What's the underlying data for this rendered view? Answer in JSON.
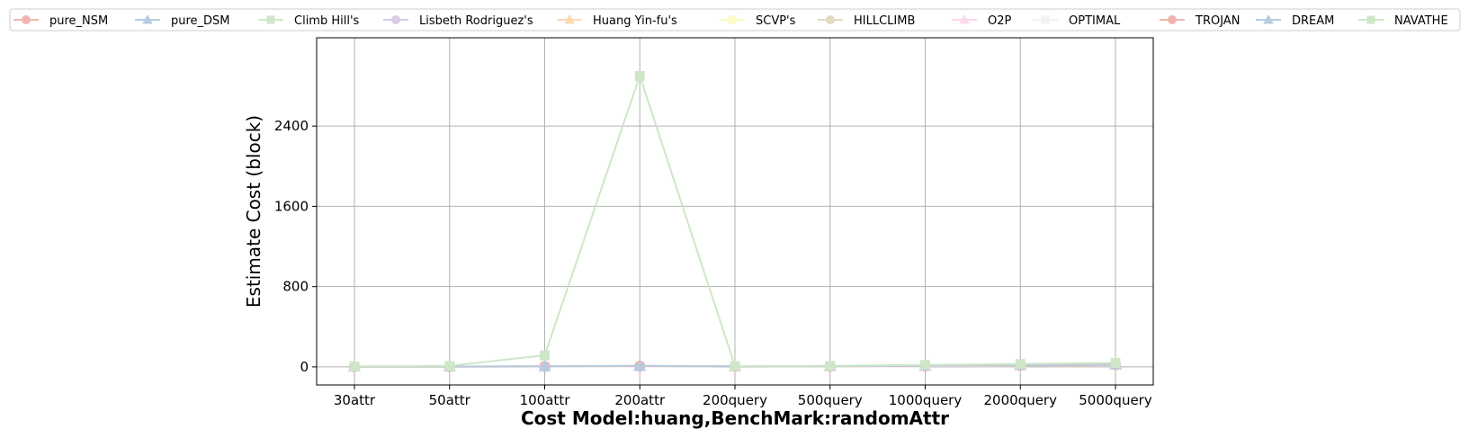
{
  "chart_data": {
    "type": "line",
    "title": "",
    "xlabel": "Cost Model:huang,BenchMark:randomAttr",
    "ylabel": "Estimate Cost (block)",
    "categories": [
      "30attr",
      "50attr",
      "100attr",
      "200attr",
      "200query",
      "500query",
      "1000query",
      "2000query",
      "5000query"
    ],
    "ylim": [
      -180,
      3280
    ],
    "yticks": [
      0,
      800,
      1600,
      2400
    ],
    "grid": true,
    "legend_position": "top",
    "series": [
      {
        "name": "pure_NSM",
        "marker": "circle",
        "color": "#f1b5b0",
        "values": [
          2,
          3,
          5,
          8,
          4,
          6,
          9,
          15,
          20
        ]
      },
      {
        "name": "pure_DSM",
        "marker": "triangle",
        "color": "#b6cbe0",
        "values": [
          3,
          4,
          6,
          10,
          5,
          7,
          11,
          18,
          25
        ]
      },
      {
        "name": "Climb Hill's",
        "marker": "square",
        "color": "#cfe6c9",
        "values": [
          2,
          3,
          5,
          9,
          4,
          6,
          10,
          16,
          22
        ]
      },
      {
        "name": "Lisbeth Rodriguez's",
        "marker": "circle",
        "color": "#d8cbe3",
        "values": [
          2,
          3,
          4,
          7,
          4,
          6,
          9,
          14,
          20
        ]
      },
      {
        "name": "Huang Yin-fu's",
        "marker": "triangle",
        "color": "#fdd9b0",
        "values": [
          1,
          2,
          4,
          6,
          3,
          5,
          8,
          13,
          18
        ]
      },
      {
        "name": "SCVP's",
        "marker": "square",
        "color": "#fdfbc5",
        "values": [
          1,
          2,
          4,
          6,
          3,
          5,
          8,
          13,
          18
        ]
      },
      {
        "name": "HILLCLIMB",
        "marker": "circle",
        "color": "#e2d9c0",
        "values": [
          1,
          2,
          4,
          6,
          3,
          5,
          8,
          13,
          18
        ]
      },
      {
        "name": "O2P",
        "marker": "triangle",
        "color": "#fbd9ea",
        "values": [
          1,
          2,
          4,
          6,
          3,
          5,
          8,
          13,
          18
        ]
      },
      {
        "name": "OPTIMAL",
        "marker": "square",
        "color": "#f2f2f2",
        "values": [
          1,
          2,
          4,
          6,
          3,
          5,
          8,
          13,
          18
        ]
      },
      {
        "name": "TROJAN",
        "marker": "circle",
        "color": "#f1b5b0",
        "values": [
          2,
          3,
          5,
          8,
          4,
          6,
          9,
          15,
          20
        ]
      },
      {
        "name": "DREAM",
        "marker": "triangle",
        "color": "#b6cbe0",
        "values": [
          3,
          4,
          6,
          10,
          5,
          7,
          11,
          18,
          25
        ]
      },
      {
        "name": "NAVATHE",
        "marker": "square",
        "color": "#cfe6c9",
        "values": [
          5,
          10,
          115,
          2900,
          8,
          10,
          20,
          30,
          40
        ]
      }
    ]
  }
}
